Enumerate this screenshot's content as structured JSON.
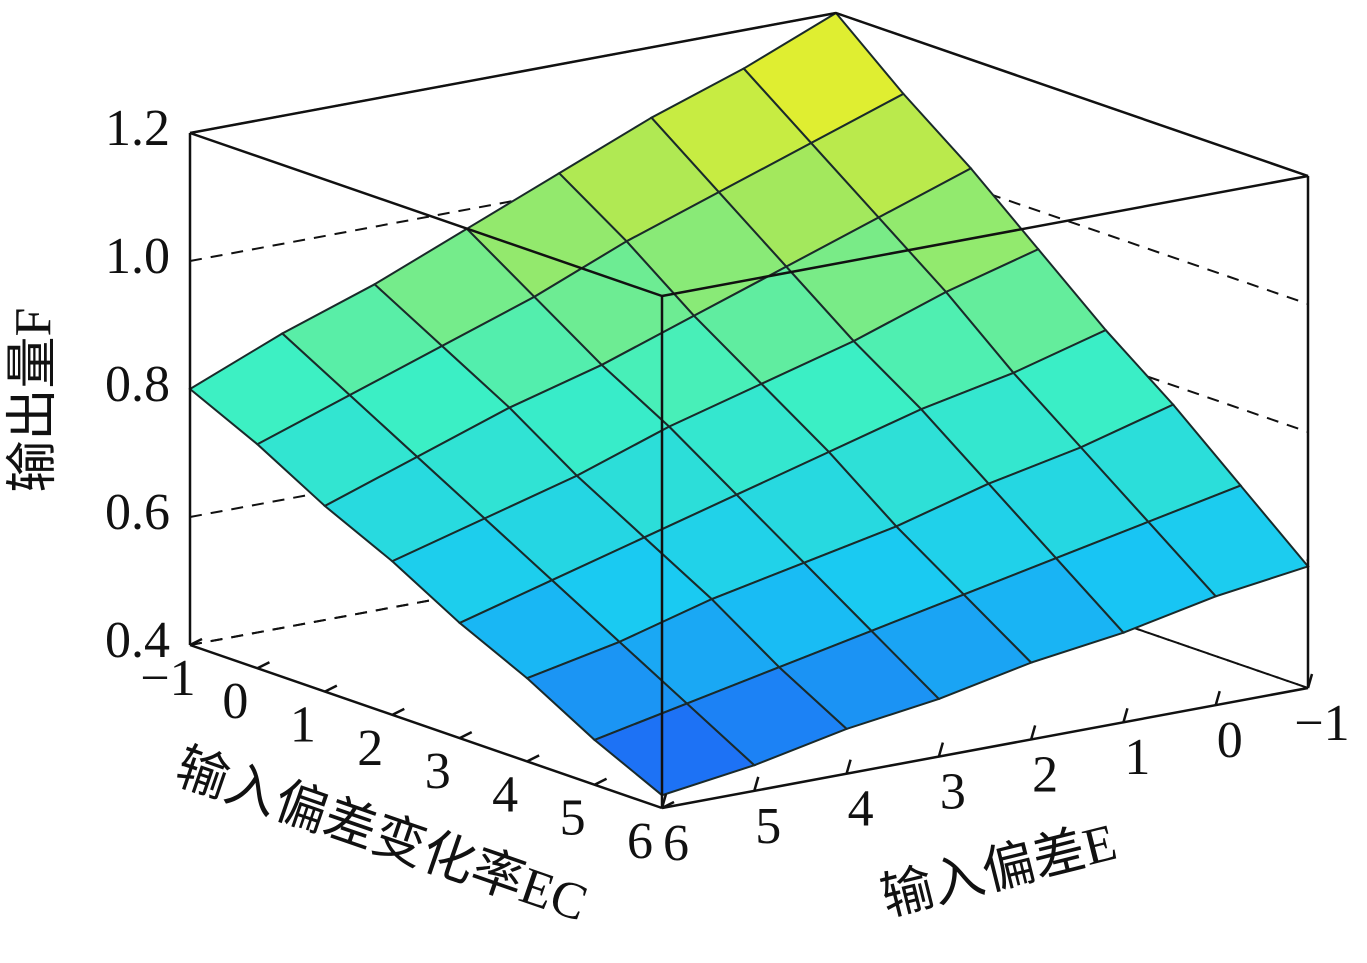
{
  "chart_data": {
    "type": "surface",
    "zlabel": "输出量F",
    "xlabel": "输入偏差E",
    "ylabel": "输入偏差变化率EC",
    "x": [
      -1,
      0,
      1,
      2,
      3,
      4,
      5,
      6
    ],
    "y": [
      -1,
      0,
      1,
      2,
      3,
      4,
      5,
      6
    ],
    "z": [
      [
        1.2,
        1.14,
        1.09,
        1.03,
        0.97,
        0.91,
        0.86,
        0.8
      ],
      [
        1.11,
        1.06,
        1.01,
        0.96,
        0.9,
        0.85,
        0.8,
        0.75
      ],
      [
        1.03,
        0.98,
        0.93,
        0.88,
        0.83,
        0.79,
        0.74,
        0.69
      ],
      [
        0.94,
        0.9,
        0.85,
        0.81,
        0.77,
        0.72,
        0.68,
        0.64
      ],
      [
        0.85,
        0.81,
        0.78,
        0.74,
        0.7,
        0.66,
        0.62,
        0.58
      ],
      [
        0.77,
        0.73,
        0.7,
        0.66,
        0.63,
        0.6,
        0.56,
        0.53
      ],
      [
        0.68,
        0.65,
        0.62,
        0.59,
        0.56,
        0.53,
        0.5,
        0.47
      ],
      [
        0.59,
        0.57,
        0.54,
        0.52,
        0.49,
        0.47,
        0.44,
        0.42
      ]
    ],
    "xlim": [
      -1,
      6
    ],
    "ylim": [
      -1,
      6
    ],
    "zlim": [
      0.4,
      1.2
    ],
    "xticks": [
      {
        "value": -1,
        "label": "−1"
      },
      0,
      1,
      2,
      3,
      4,
      5,
      6
    ],
    "yticks": [
      {
        "value": -1,
        "label": "−1"
      },
      0,
      1,
      2,
      3,
      4,
      5,
      6
    ],
    "zticks": [
      0.4,
      0.6,
      0.8,
      {
        "value": 1,
        "label": "1.0"
      },
      1.2
    ],
    "grid": true,
    "colormap": [
      "#1f4ff5",
      "#18c8f4",
      "#3cf0c4",
      "#a6e85a",
      "#fff21a"
    ]
  }
}
